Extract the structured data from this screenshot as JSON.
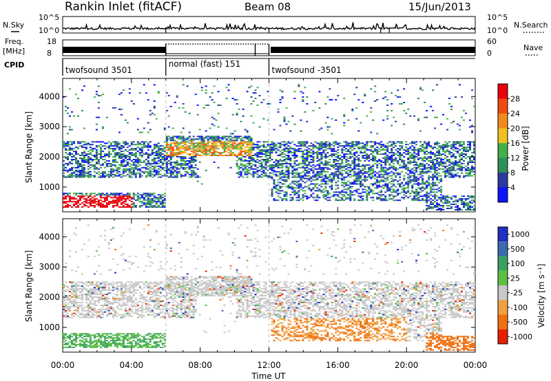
{
  "header": {
    "station": "Rankin Inlet (fitACF)",
    "beam": "Beam 08",
    "date": "15/Jun/2013"
  },
  "colors": {
    "axis": "#000000",
    "power_scale": [
      "#0a14ff",
      "#2a3aa0",
      "#2f8f5a",
      "#43b04a",
      "#f0c020",
      "#f08a20",
      "#f04a10",
      "#e8000a"
    ],
    "velocity_scale": [
      "#2030c0",
      "#3a6ab0",
      "#3aa060",
      "#5cc040",
      "#c8c8c8",
      "#f0a040",
      "#f07010",
      "#e82000"
    ]
  },
  "chart_data": [
    {
      "type": "line",
      "name": "noise",
      "left_label": "N.Sky",
      "right_label": "N.Search",
      "left_ticks": [
        "10^5",
        "10^0"
      ],
      "right_ticks": [
        "10^5",
        "10^0"
      ]
    },
    {
      "type": "line",
      "name": "frequency-nave",
      "left_label": "Freq.",
      "left_unit": "[MHz]",
      "right_label": "Nave",
      "left_ticks": [
        "18",
        "8"
      ],
      "right_ticks": [
        "60",
        "0"
      ],
      "freq_ylim": [
        8,
        18
      ],
      "nave_ylim": [
        0,
        60
      ]
    },
    {
      "type": "table",
      "name": "cpid",
      "label": "CPID",
      "segments": [
        {
          "start_hour": 0,
          "end_hour": 6,
          "label": "twofsound 3501"
        },
        {
          "start_hour": 6,
          "end_hour": 12,
          "label": "normal (fast) 151"
        },
        {
          "start_hour": 12,
          "end_hour": 24,
          "label": "twofsound -3501"
        }
      ]
    },
    {
      "type": "heatmap",
      "name": "power",
      "ylabel": "Slant Range [km]",
      "yticks": [
        1000,
        2000,
        3000,
        4000
      ],
      "ylim": [
        180,
        4600
      ],
      "xlim": [
        0,
        24
      ],
      "colorbar_label": "Power [dB]",
      "colorbar_ticks": [
        4,
        8,
        12,
        16,
        20,
        24,
        28
      ],
      "colorbar_range": [
        0,
        32
      ]
    },
    {
      "type": "heatmap",
      "name": "velocity",
      "ylabel": "Slant Range [km]",
      "yticks": [
        1000,
        2000,
        3000,
        4000
      ],
      "ylim": [
        180,
        4600
      ],
      "xlim": [
        0,
        24
      ],
      "xticks": [
        "00:00",
        "04:00",
        "08:00",
        "12:00",
        "16:00",
        "20:00",
        "00:00"
      ],
      "xlabel": "Time UT",
      "colorbar_label": "Velocity [m s⁻¹]",
      "colorbar_ticks": [
        "1000",
        "500",
        "100",
        "25",
        "-25",
        "-100",
        "-500",
        "-1000"
      ]
    }
  ]
}
